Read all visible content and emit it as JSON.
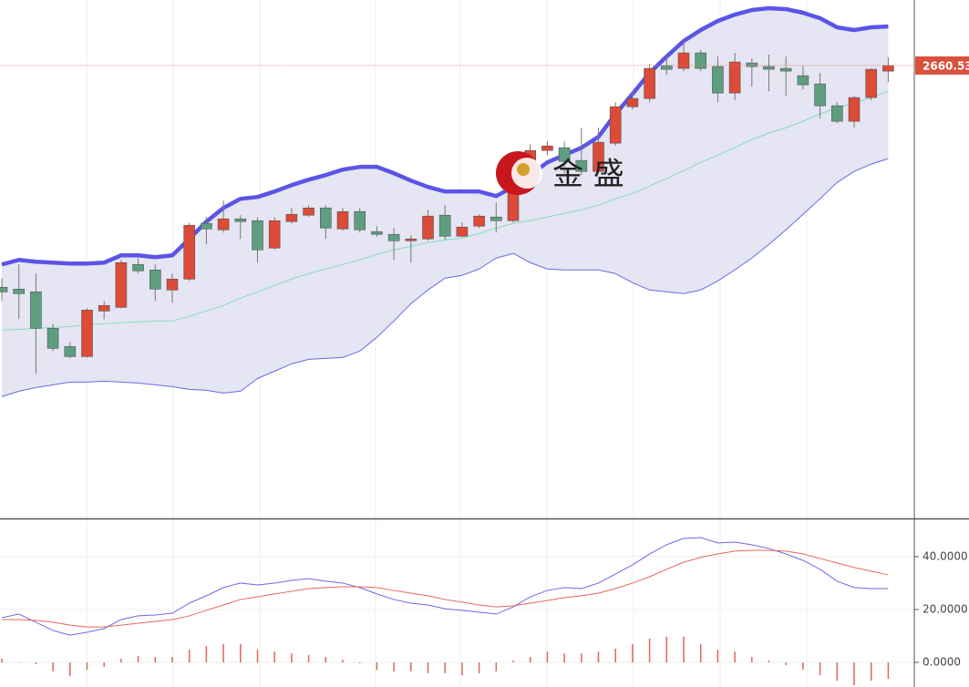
{
  "chart_data": [
    {
      "type": "candlestick",
      "watermark": "金 盛",
      "last_price": 2660.53,
      "ylim": [
        2264,
        2718
      ],
      "up_color": "#dc4a38",
      "down_color": "#5e9e80",
      "open": [
        2466,
        2464.4,
        2462,
        2430,
        2414,
        2405.2,
        2445.2,
        2448.4,
        2486,
        2481.2,
        2463.6,
        2473.2,
        2522,
        2516.4,
        2526,
        2524.4,
        2500.4,
        2523.6,
        2529.2,
        2535.6,
        2517.2,
        2532.4,
        2514.8,
        2512.4,
        2506.8,
        2508.4,
        2529.2,
        2510.8,
        2519.6,
        2527.6,
        2524.4,
        2570,
        2586,
        2588.4,
        2577.2,
        2567.6,
        2592.4,
        2624.4,
        2631.6,
        2660.4,
        2658,
        2671.6,
        2659.6,
        2636.4,
        2662.8,
        2659.6,
        2658,
        2651.6,
        2644.4,
        2625.2,
        2611.6,
        2632.4,
        2655.6
      ],
      "high": [
        2474,
        2486,
        2478,
        2434,
        2418,
        2447.6,
        2454,
        2490,
        2491.6,
        2486,
        2478,
        2522.8,
        2527.6,
        2542,
        2529.2,
        2527.6,
        2527.6,
        2535.6,
        2538,
        2538,
        2535.6,
        2535.6,
        2519.6,
        2518,
        2511.6,
        2534,
        2538,
        2522.8,
        2530,
        2540.4,
        2575.6,
        2591.6,
        2594,
        2594,
        2606,
        2606,
        2628.4,
        2638,
        2662,
        2670,
        2682,
        2674,
        2668.4,
        2671.6,
        2666.8,
        2670,
        2668.4,
        2660.4,
        2654,
        2628.4,
        2634,
        2658,
        2667.6
      ],
      "low": [
        2454,
        2438,
        2390,
        2410,
        2403.6,
        2404.4,
        2438,
        2447.6,
        2478,
        2454,
        2452.4,
        2471.6,
        2503.6,
        2514,
        2508.4,
        2487.6,
        2498.8,
        2522,
        2527.6,
        2508.4,
        2515.6,
        2514,
        2510,
        2490,
        2487.6,
        2506.8,
        2507.6,
        2510,
        2518,
        2514,
        2522.8,
        2566,
        2582,
        2566,
        2564.4,
        2566,
        2590,
        2622,
        2628.4,
        2652.4,
        2655.6,
        2655.6,
        2628.4,
        2630,
        2642,
        2638,
        2634,
        2639.6,
        2614,
        2610,
        2606,
        2630,
        2646
      ],
      "close": [
        2462,
        2460.4,
        2430,
        2412.4,
        2405.2,
        2446,
        2450,
        2487.6,
        2480.4,
        2464.4,
        2473.2,
        2520.4,
        2517.2,
        2526,
        2523.6,
        2498.8,
        2524.4,
        2530,
        2535.6,
        2518,
        2532.4,
        2516.4,
        2512.4,
        2506.8,
        2508.4,
        2528.4,
        2510.8,
        2518.8,
        2528.4,
        2524.4,
        2569.2,
        2586,
        2590,
        2576.4,
        2567.6,
        2593.2,
        2624.4,
        2631.6,
        2658,
        2657.2,
        2671.6,
        2658,
        2636.4,
        2663.6,
        2659.6,
        2657.2,
        2655.6,
        2643.6,
        2625.2,
        2611.6,
        2632.4,
        2657.2,
        2660.53
      ],
      "series": [
        {
          "color": "#5a55e6",
          "values": [
            2486,
            2490,
            2488.4,
            2487.6,
            2486.8,
            2486.8,
            2487.6,
            2494,
            2494,
            2492.4,
            2494,
            2508.4,
            2523.6,
            2535.6,
            2543.6,
            2545.2,
            2550,
            2555.6,
            2560.4,
            2564.4,
            2569.2,
            2571.6,
            2571.6,
            2566,
            2559.6,
            2554,
            2550,
            2550,
            2550,
            2546,
            2554,
            2564.4,
            2575.6,
            2582,
            2588.4,
            2598,
            2618,
            2635.6,
            2654,
            2668.4,
            2682,
            2691.6,
            2699.6,
            2705.2,
            2709.2,
            2710.8,
            2710,
            2706.8,
            2702,
            2694,
            2691.6,
            2694,
            2694.8
          ]
        },
        {
          "color": "#86dcc4",
          "values": [
            2428.4,
            2429.2,
            2430,
            2430.8,
            2431.6,
            2433.2,
            2434,
            2434.8,
            2435.6,
            2436.4,
            2436.4,
            2440.4,
            2445.2,
            2450,
            2456.4,
            2462,
            2467.6,
            2473.2,
            2478,
            2482,
            2486,
            2490,
            2494.8,
            2498.8,
            2502,
            2505.2,
            2507.6,
            2509.2,
            2513.2,
            2518,
            2522,
            2524.4,
            2527.6,
            2530.8,
            2534,
            2538,
            2543.6,
            2548.4,
            2554.8,
            2561.2,
            2568.4,
            2575.6,
            2582,
            2588.4,
            2595.6,
            2601.2,
            2606,
            2611.6,
            2618,
            2623.6,
            2627.6,
            2632.4,
            2638
          ]
        },
        {
          "color": "#6a6ae0",
          "values": [
            2370,
            2374.8,
            2378,
            2380.4,
            2382.8,
            2382.8,
            2383.6,
            2382.8,
            2382,
            2380.4,
            2378.8,
            2376.4,
            2375.6,
            2373.2,
            2374.8,
            2386,
            2392.4,
            2398.8,
            2402.8,
            2403.6,
            2404.4,
            2410,
            2422,
            2436.4,
            2451.6,
            2463.6,
            2474,
            2476.4,
            2482,
            2491.6,
            2495.6,
            2487.6,
            2482,
            2481.2,
            2481.2,
            2481.2,
            2478,
            2470,
            2463.6,
            2462,
            2460.4,
            2463.6,
            2471.6,
            2481.2,
            2491.6,
            2503.6,
            2516.4,
            2530,
            2543.6,
            2558,
            2567.6,
            2574,
            2578.8
          ]
        }
      ]
    },
    {
      "type": "macd",
      "ylim": [
        -9.3,
        54.1
      ],
      "yticks": [
        {
          "value": 0,
          "label": "0.0000"
        },
        {
          "value": 20,
          "label": "20.0000"
        },
        {
          "value": 40,
          "label": "40.0000"
        }
      ],
      "grid": true,
      "histogram": {
        "color": "#e0675a",
        "values": [
          1.4,
          0,
          -0.7,
          -3.4,
          -5.2,
          -2.8,
          -1.7,
          1.4,
          2.4,
          2.1,
          2.1,
          4.8,
          6.2,
          6.9,
          6.9,
          4.8,
          4.1,
          3.4,
          2.8,
          2.1,
          1,
          -0.3,
          -2.8,
          -3.4,
          -3.4,
          -4.1,
          -4.1,
          -4.8,
          -4.1,
          -3.4,
          0.7,
          2.1,
          4.1,
          3.4,
          3.4,
          4.1,
          5.2,
          6.9,
          9,
          9.7,
          9.7,
          6.9,
          4.8,
          4.1,
          2.1,
          0.7,
          -1,
          -2.8,
          -4.8,
          -6.9,
          -8.6,
          -6.9,
          -6.2
        ]
      },
      "series": [
        {
          "color": "#6a6ae6",
          "values": [
            16.9,
            18.3,
            15.2,
            12.1,
            10.3,
            11.4,
            12.8,
            16.2,
            17.6,
            17.9,
            18.6,
            22.4,
            25.2,
            28.3,
            30,
            29.3,
            30,
            31,
            31.7,
            30.7,
            30,
            28.3,
            25.9,
            23.8,
            22.4,
            21.7,
            20.3,
            19.7,
            19,
            18.3,
            21,
            24.8,
            27.2,
            28.3,
            27.9,
            30,
            33.4,
            36.9,
            41,
            44.5,
            46.9,
            47.2,
            45.2,
            45.5,
            44.5,
            43.1,
            41,
            38.6,
            35.2,
            30.7,
            28.3,
            27.9,
            27.9
          ]
        },
        {
          "color": "#e8675a",
          "values": [
            16.2,
            16.2,
            15.9,
            15.2,
            14.1,
            13.4,
            13.4,
            14.1,
            14.8,
            15.5,
            16.2,
            17.6,
            19.7,
            21.7,
            23.8,
            24.8,
            25.9,
            26.9,
            27.9,
            28.3,
            28.6,
            28.6,
            28.3,
            27.2,
            26.2,
            25.2,
            23.8,
            22.8,
            21.7,
            21,
            21.4,
            22.4,
            23.4,
            24.5,
            25.2,
            26.2,
            27.9,
            30,
            32.4,
            35.2,
            37.9,
            39.7,
            41,
            42.1,
            42.4,
            42.4,
            42.1,
            41,
            39.3,
            37.6,
            35.9,
            34.5,
            33.1
          ]
        }
      ]
    }
  ]
}
